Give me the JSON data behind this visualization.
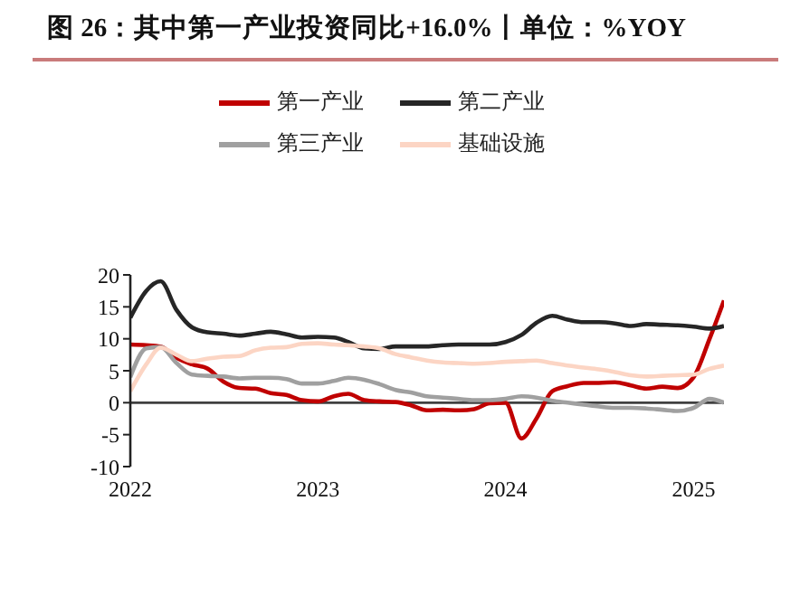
{
  "chart_data": {
    "type": "line",
    "title": "图 26：其中第一产业投资同比+16.0%丨单位：%YOY",
    "x": [
      "2022-01",
      "2022-02",
      "2022-03",
      "2022-04",
      "2022-05",
      "2022-06",
      "2022-07",
      "2022-08",
      "2022-09",
      "2022-10",
      "2022-11",
      "2022-12",
      "2023-01",
      "2023-02",
      "2023-03",
      "2023-04",
      "2023-05",
      "2023-06",
      "2023-07",
      "2023-08",
      "2023-09",
      "2023-10",
      "2023-11",
      "2023-12",
      "2024-01",
      "2024-02",
      "2024-03",
      "2024-04",
      "2024-05",
      "2024-06",
      "2024-07",
      "2024-08",
      "2024-09",
      "2024-10",
      "2024-11",
      "2024-12",
      "2025-01",
      "2025-02",
      "2025-03"
    ],
    "series": [
      {
        "name": "第一产业",
        "color": "#c00000",
        "values": [
          9.1,
          9.0,
          8.8,
          7.0,
          6.0,
          5.3,
          3.3,
          2.3,
          2.2,
          1.5,
          1.2,
          0.4,
          0.2,
          1.0,
          1.4,
          0.4,
          0.2,
          0.1,
          -0.4,
          -1.2,
          -1.1,
          -1.2,
          -1.0,
          -0.1,
          0.0,
          -5.6,
          -2.5,
          1.8,
          2.6,
          3.1,
          3.1,
          3.2,
          2.7,
          2.2,
          2.5,
          2.3,
          4.0,
          10.0,
          16.0
        ]
      },
      {
        "name": "第二产业",
        "color": "#262626",
        "values": [
          13.3,
          17.5,
          19.0,
          14.5,
          11.8,
          11.0,
          10.8,
          10.5,
          10.8,
          11.1,
          10.7,
          10.2,
          10.3,
          10.2,
          9.5,
          8.5,
          8.4,
          8.8,
          8.8,
          8.8,
          9.0,
          9.1,
          9.1,
          9.1,
          9.5,
          10.6,
          12.5,
          13.6,
          13.0,
          12.6,
          12.6,
          12.4,
          12.0,
          12.3,
          12.2,
          12.1,
          11.9,
          11.6,
          12.0
        ]
      },
      {
        "name": "第三产业",
        "color": "#a0a0a0",
        "values": [
          4.0,
          8.5,
          8.7,
          6.2,
          4.4,
          4.2,
          4.1,
          3.8,
          3.9,
          3.9,
          3.7,
          3.0,
          3.0,
          3.4,
          3.9,
          3.6,
          2.9,
          2.0,
          1.6,
          1.0,
          0.8,
          0.6,
          0.4,
          0.4,
          0.6,
          1.0,
          0.8,
          0.3,
          0.0,
          -0.3,
          -0.6,
          -0.8,
          -0.8,
          -0.9,
          -1.1,
          -1.3,
          -0.8,
          0.6,
          0.0
        ]
      },
      {
        "name": "基础设施",
        "color": "#fcd5c4",
        "values": [
          1.8,
          6.0,
          8.6,
          7.5,
          6.5,
          6.9,
          7.2,
          7.3,
          8.2,
          8.6,
          8.7,
          9.2,
          9.3,
          9.1,
          9.0,
          8.8,
          8.5,
          7.6,
          7.1,
          6.6,
          6.3,
          6.2,
          6.1,
          6.2,
          6.4,
          6.5,
          6.6,
          6.2,
          5.8,
          5.5,
          5.2,
          4.8,
          4.3,
          4.1,
          4.2,
          4.3,
          4.4,
          5.3,
          5.8
        ]
      }
    ],
    "xlim": [
      "2022-01",
      "2025-03"
    ],
    "xticks": [
      "2022",
      "2023",
      "2024",
      "2025"
    ],
    "ylim": [
      -10,
      20
    ],
    "yticks": [
      -10,
      -5,
      0,
      5,
      10,
      15,
      20
    ],
    "ref_lines": [
      {
        "axis": "y",
        "value": 0,
        "color": "#404040"
      }
    ],
    "legend": "top",
    "marker": "none",
    "line_style": "solid"
  }
}
